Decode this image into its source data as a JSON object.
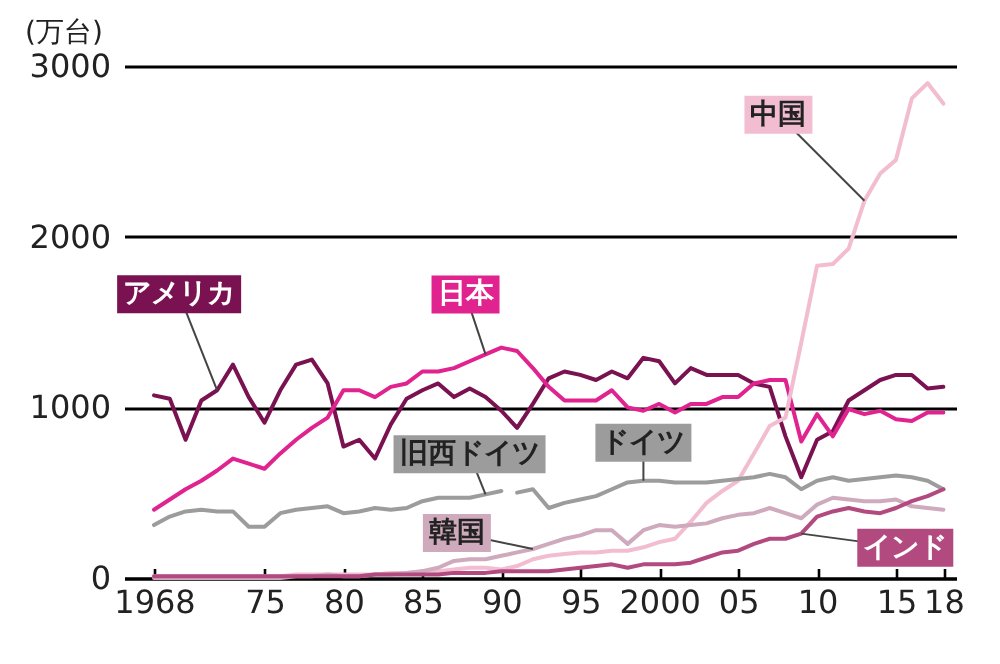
{
  "chart_data": {
    "type": "line",
    "ylabel": "(万台)",
    "x": [
      1968,
      1969,
      1970,
      1971,
      1972,
      1973,
      1974,
      1975,
      1976,
      1977,
      1978,
      1979,
      1980,
      1981,
      1982,
      1983,
      1984,
      1985,
      1986,
      1987,
      1988,
      1989,
      1990,
      1991,
      1992,
      1993,
      1994,
      1995,
      1996,
      1997,
      1998,
      1999,
      2000,
      2001,
      2002,
      2003,
      2004,
      2005,
      2006,
      2007,
      2008,
      2009,
      2010,
      2011,
      2012,
      2013,
      2014,
      2015,
      2016,
      2017,
      2018
    ],
    "series": [
      {
        "name": "アメリカ",
        "color": "#7a1150",
        "values": [
          1070,
          1050,
          810,
          1040,
          1100,
          1250,
          1060,
          910,
          1100,
          1250,
          1280,
          1140,
          770,
          810,
          700,
          900,
          1050,
          1100,
          1140,
          1060,
          1110,
          1060,
          980,
          880,
          1020,
          1170,
          1210,
          1190,
          1160,
          1210,
          1170,
          1290,
          1270,
          1140,
          1230,
          1190,
          1190,
          1190,
          1140,
          1120,
          830,
          590,
          810,
          860,
          1040,
          1100,
          1160,
          1190,
          1190,
          1110,
          1120
        ]
      },
      {
        "name": "日本",
        "color": "#e0238e",
        "values": [
          400,
          460,
          520,
          570,
          630,
          700,
          670,
          640,
          730,
          810,
          880,
          940,
          1100,
          1100,
          1060,
          1120,
          1140,
          1210,
          1210,
          1230,
          1270,
          1310,
          1350,
          1330,
          1230,
          1120,
          1040,
          1040,
          1040,
          1100,
          1000,
          980,
          1020,
          970,
          1020,
          1020,
          1060,
          1060,
          1140,
          1160,
          1160,
          800,
          960,
          830,
          990,
          960,
          980,
          930,
          920,
          970,
          970
        ]
      },
      {
        "name": "中国",
        "color": "#f2bdd1",
        "values": [
          10,
          10,
          10,
          10,
          10,
          10,
          10,
          10,
          10,
          20,
          20,
          20,
          20,
          20,
          20,
          30,
          30,
          40,
          40,
          50,
          60,
          60,
          50,
          70,
          110,
          130,
          140,
          150,
          150,
          160,
          160,
          180,
          210,
          230,
          330,
          440,
          510,
          570,
          730,
          890,
          940,
          1380,
          1830,
          1840,
          1930,
          2210,
          2370,
          2450,
          2810,
          2900,
          2780
        ]
      },
      {
        "name": "旧西ドイツ",
        "color": "#9c9c9c",
        "values": [
          310,
          360,
          390,
          400,
          390,
          390,
          300,
          300,
          380,
          400,
          410,
          420,
          380,
          390,
          410,
          400,
          410,
          450,
          470,
          470,
          470,
          490,
          510,
          null,
          null,
          null,
          null,
          null,
          null,
          null,
          null,
          null,
          null,
          null,
          null,
          null,
          null,
          null,
          null,
          null,
          null,
          null,
          null,
          null,
          null,
          null,
          null,
          null,
          null,
          null,
          null
        ]
      },
      {
        "name": "ドイツ",
        "color": "#9c9c9c",
        "values": [
          null,
          null,
          null,
          null,
          null,
          null,
          null,
          null,
          null,
          null,
          null,
          null,
          null,
          null,
          null,
          null,
          null,
          null,
          null,
          null,
          null,
          null,
          null,
          500,
          520,
          410,
          440,
          460,
          480,
          520,
          560,
          570,
          570,
          560,
          560,
          560,
          570,
          580,
          590,
          610,
          590,
          520,
          570,
          590,
          570,
          580,
          590,
          600,
          590,
          570,
          520
        ]
      },
      {
        "name": "韓国",
        "color": "#cfaabd",
        "values": [
          0,
          0,
          0,
          0,
          0,
          0,
          0,
          0,
          0,
          10,
          10,
          20,
          10,
          10,
          20,
          20,
          30,
          40,
          60,
          100,
          110,
          110,
          130,
          150,
          170,
          200,
          230,
          250,
          280,
          280,
          200,
          280,
          310,
          300,
          310,
          320,
          350,
          370,
          380,
          410,
          380,
          350,
          430,
          470,
          460,
          450,
          450,
          460,
          420,
          410,
          400
        ]
      },
      {
        "name": "インド",
        "color": "#b24a80",
        "values": [
          10,
          10,
          10,
          10,
          10,
          10,
          10,
          10,
          10,
          10,
          10,
          10,
          10,
          10,
          20,
          20,
          20,
          20,
          20,
          30,
          30,
          30,
          40,
          40,
          40,
          40,
          50,
          60,
          70,
          80,
          60,
          80,
          80,
          80,
          90,
          120,
          150,
          160,
          200,
          230,
          230,
          260,
          360,
          390,
          410,
          390,
          380,
          410,
          450,
          480,
          520
        ]
      }
    ],
    "xlim": [
      1966.1,
      2018.8
    ],
    "xticks": [
      1968,
      {
        "value": 1975,
        "label": "75"
      },
      {
        "value": 1980,
        "label": "80"
      },
      {
        "value": 1985,
        "label": "85"
      },
      {
        "value": 1990,
        "label": "90"
      },
      {
        "value": 1995,
        "label": "95"
      },
      2000,
      {
        "value": 2005,
        "label": "05"
      },
      {
        "value": 2010,
        "label": "10"
      },
      {
        "value": 2015,
        "label": "15"
      },
      {
        "value": 2018,
        "label": "18"
      }
    ],
    "ylim": [
      0,
      3000
    ],
    "yticks": [
      0,
      1000,
      2000,
      3000
    ],
    "grid": "y"
  }
}
